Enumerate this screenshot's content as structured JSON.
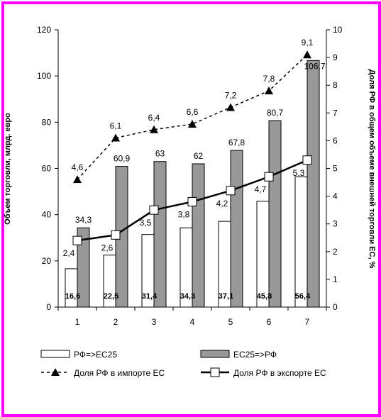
{
  "chart_data": {
    "type": "bar",
    "categories": [
      "1",
      "2",
      "3",
      "4",
      "5",
      "6",
      "7"
    ],
    "left_axis": {
      "label": "Объем торговли, млрд. евро",
      "ylim": [
        0,
        120
      ],
      "ticks": [
        0,
        20,
        40,
        60,
        80,
        100,
        120
      ]
    },
    "right_axis": {
      "label": "Доля РФ в общем объеме внешней торговли ЕС, %",
      "ylim": [
        0,
        10
      ],
      "ticks": [
        0,
        1,
        2,
        3,
        4,
        5,
        6,
        7,
        8,
        9,
        10
      ]
    },
    "series": [
      {
        "name": "РФ=>ЕС25",
        "kind": "bar",
        "axis": "left",
        "color": "#ffffff",
        "values": [
          16.6,
          22.5,
          31.4,
          34.3,
          37.1,
          45.8,
          56.4
        ],
        "labels": [
          "16,6",
          "22,5",
          "31,4",
          "34,3",
          "37,1",
          "45,8",
          "56,4"
        ]
      },
      {
        "name": "ЕС25=>РФ",
        "kind": "bar",
        "axis": "left",
        "color": "#999999",
        "values": [
          34.3,
          60.9,
          63,
          62,
          67.8,
          80.7,
          106.7
        ],
        "labels": [
          "34,3",
          "60,9",
          "63",
          "62",
          "67,8",
          "80,7",
          "106,7"
        ]
      },
      {
        "name": "Доля РФ в импорте ЕС",
        "kind": "line",
        "axis": "right",
        "style": "dashed",
        "marker": "triangle",
        "values": [
          4.6,
          6.1,
          6.4,
          6.6,
          7.2,
          7.8,
          9.1
        ],
        "labels": [
          "4,6",
          "6,1",
          "6,4",
          "6,6",
          "7,2",
          "7,8",
          "9,1"
        ]
      },
      {
        "name": "Доля РФ в экспорте ЕС",
        "kind": "line",
        "axis": "right",
        "style": "solid",
        "marker": "square",
        "values": [
          2.4,
          2.6,
          3.5,
          3.8,
          4.2,
          4.7,
          5.3
        ],
        "labels": [
          "2,4",
          "2,6",
          "3,5",
          "3,8",
          "4,2",
          "4,7",
          "5,3"
        ]
      }
    ],
    "grid": false,
    "legend_position": "bottom"
  }
}
